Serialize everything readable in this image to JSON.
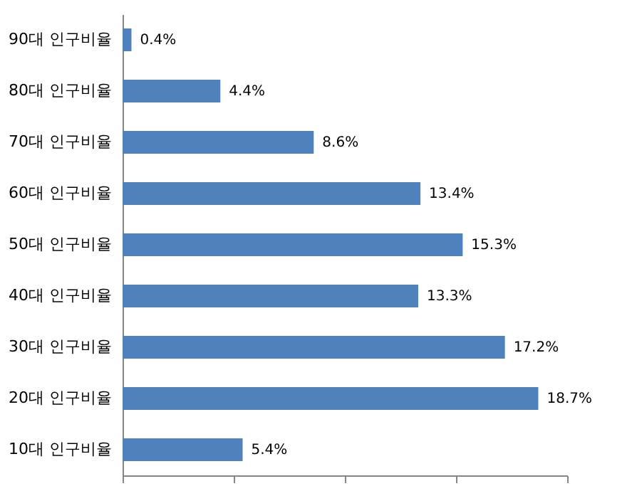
{
  "chart_data": {
    "type": "bar",
    "orientation": "horizontal",
    "categories": [
      "90대 인구비율",
      "80대 인구비율",
      "70대 인구비율",
      "60대 인구비율",
      "50대 인구비율",
      "40대 인구비율",
      "30대 인구비율",
      "20대 인구비율",
      "10대 인구비율"
    ],
    "series": [
      {
        "color": "#4f81bd",
        "values": [
          0.4,
          4.4,
          8.6,
          13.4,
          15.3,
          13.3,
          17.2,
          18.7,
          5.4
        ],
        "value_labels": [
          "0.4%",
          "4.4%",
          "8.6%",
          "13.4%",
          "15.3%",
          "13.3%",
          "17.2%",
          "18.7%",
          "5.4%"
        ]
      }
    ],
    "xlim": [
      0,
      20
    ],
    "xticks": [
      {
        "value": 0,
        "label": null
      },
      {
        "value": 5,
        "label": null
      },
      {
        "value": 10,
        "label": null
      },
      {
        "value": 15,
        "label": null
      },
      {
        "value": 20,
        "label": null
      }
    ],
    "tick_labels": "y",
    "grid": false
  }
}
